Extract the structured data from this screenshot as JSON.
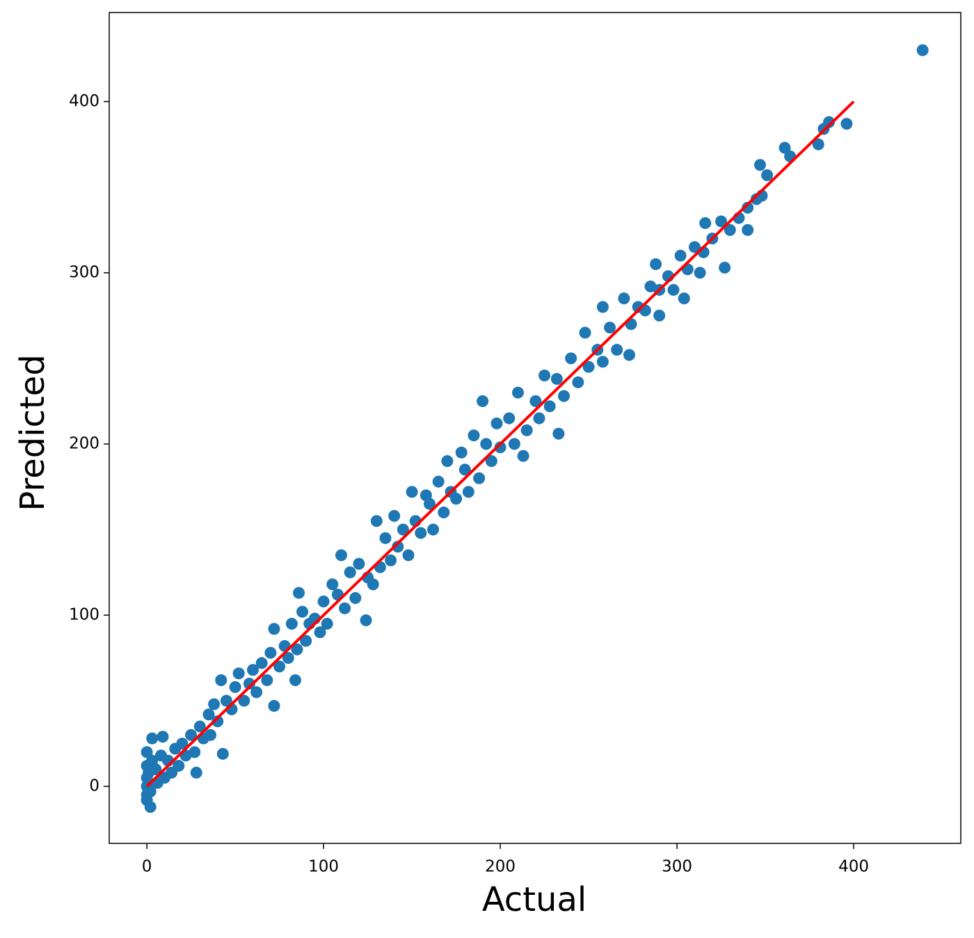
{
  "chart_data": {
    "type": "scatter",
    "xlabel": "Actual",
    "ylabel": "Predicted",
    "color": "#1f77b4",
    "x": [
      0,
      0,
      0,
      0,
      1,
      2,
      3,
      5,
      6,
      8,
      10,
      12,
      14,
      16,
      18,
      20,
      22,
      25,
      27,
      28,
      30,
      32,
      35,
      36,
      38,
      40,
      42,
      45,
      48,
      50,
      52,
      55,
      58,
      60,
      62,
      65,
      68,
      70,
      72,
      75,
      78,
      80,
      82,
      85,
      88,
      90,
      92,
      95,
      98,
      100,
      102,
      105,
      108,
      110,
      112,
      115,
      118,
      120,
      125,
      128,
      130,
      132,
      135,
      138,
      140,
      142,
      145,
      148,
      150,
      152,
      155,
      158,
      160,
      162,
      165,
      168,
      170,
      172,
      175,
      178,
      180,
      182,
      185,
      188,
      192,
      195,
      198,
      200,
      205,
      208,
      210,
      215,
      220,
      222,
      225,
      228,
      232,
      236,
      240,
      244,
      248,
      250,
      255,
      258,
      262,
      266,
      270,
      274,
      278,
      282,
      285,
      290,
      295,
      298,
      302,
      306,
      310,
      315,
      320,
      325,
      330,
      335,
      340,
      345,
      348,
      439,
      396,
      386,
      383,
      380,
      361,
      364,
      347,
      351,
      327,
      340,
      316,
      313,
      304,
      290,
      288,
      273,
      258,
      233,
      213,
      190,
      124,
      86,
      43,
      72,
      84,
      2,
      0,
      3,
      9,
      0
    ],
    "values": [
      0,
      5,
      12,
      -5,
      8,
      -3,
      15,
      10,
      2,
      18,
      5,
      15,
      8,
      22,
      12,
      25,
      18,
      30,
      20,
      8,
      35,
      28,
      42,
      30,
      48,
      38,
      62,
      50,
      45,
      58,
      66,
      50,
      60,
      68,
      55,
      72,
      62,
      78,
      92,
      70,
      82,
      75,
      95,
      80,
      102,
      85,
      95,
      98,
      90,
      108,
      95,
      118,
      112,
      135,
      104,
      125,
      110,
      130,
      122,
      118,
      155,
      128,
      145,
      132,
      158,
      140,
      150,
      135,
      172,
      155,
      148,
      170,
      165,
      150,
      178,
      160,
      190,
      172,
      168,
      195,
      185,
      172,
      205,
      180,
      200,
      190,
      212,
      198,
      215,
      200,
      230,
      208,
      225,
      215,
      240,
      222,
      238,
      228,
      250,
      236,
      265,
      245,
      255,
      248,
      268,
      255,
      285,
      270,
      280,
      278,
      292,
      290,
      298,
      290,
      310,
      302,
      315,
      312,
      320,
      330,
      325,
      332,
      338,
      343,
      345,
      430,
      387,
      388,
      384,
      375,
      373,
      368,
      363,
      357,
      303,
      325,
      329,
      300,
      285,
      275,
      305,
      252,
      280,
      206,
      193,
      225,
      97,
      113,
      19,
      47,
      62,
      -12,
      -8,
      28,
      29,
      20
    ],
    "fit_line": {
      "x": [
        0,
        400
      ],
      "values": [
        0,
        400
      ],
      "color": "red"
    },
    "xlim": [
      -21.3,
      460.6
    ],
    "ylim": [
      -33.3,
      452
    ],
    "xticks": [
      0,
      100,
      200,
      300,
      400
    ],
    "yticks": [
      0,
      100,
      200,
      300,
      400
    ]
  }
}
